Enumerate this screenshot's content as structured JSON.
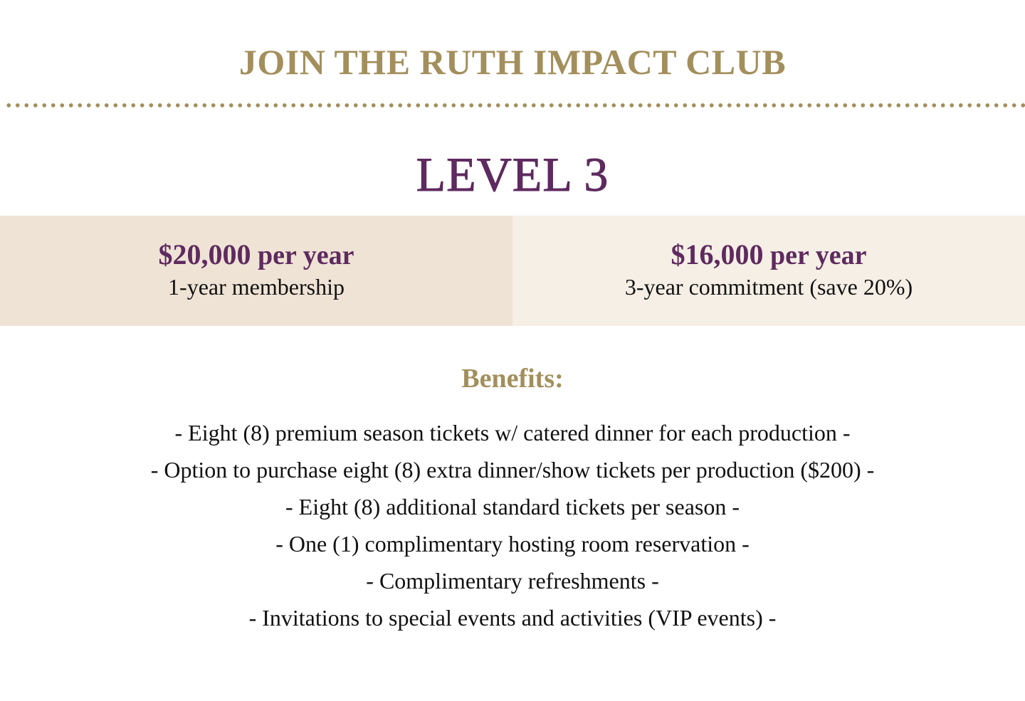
{
  "header": {
    "title": "JOIN THE RUTH IMPACT CLUB"
  },
  "level": {
    "title": "LEVEL 3"
  },
  "colors": {
    "gold": "#a38f5c",
    "purple": "#5e2a5f",
    "panel_left": "#efe3d5",
    "panel_right": "#f5efe5"
  },
  "pricing": [
    {
      "amount": "$20,000",
      "period": "per year",
      "description": "1-year membership"
    },
    {
      "amount": "$16,000",
      "period": "per year",
      "description": "3-year commitment (save 20%)"
    }
  ],
  "benefits": {
    "heading": "Benefits:",
    "items": [
      "- Eight (8) premium season tickets w/ catered dinner for each production -",
      "- Option to purchase eight (8) extra dinner/show tickets per production ($200) -",
      "- Eight (8) additional standard tickets per season -",
      "- One (1) complimentary hosting room reservation -",
      "- Complimentary refreshments -",
      "- Invitations to special events and activities (VIP events) -"
    ]
  }
}
